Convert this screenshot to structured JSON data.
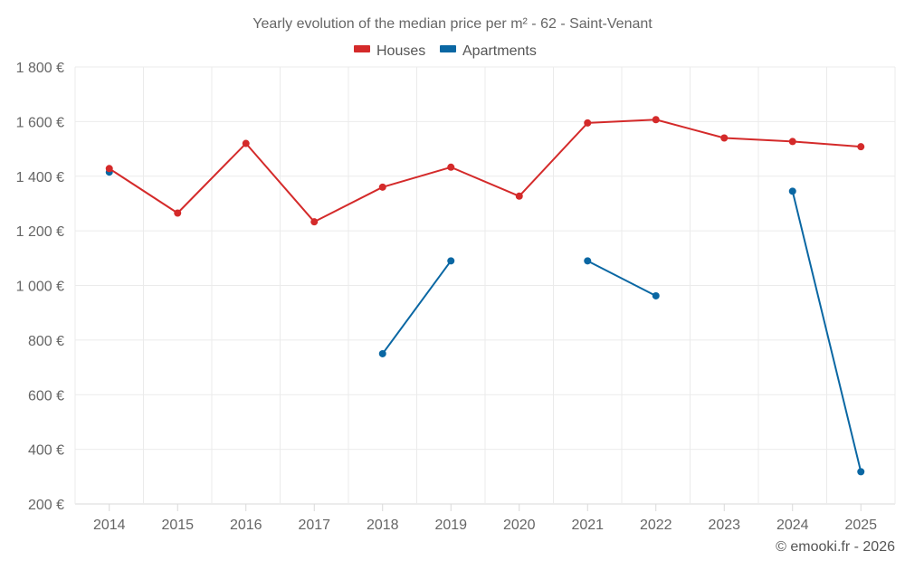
{
  "chart_data": {
    "type": "line",
    "title": "Yearly evolution of the median price per m² - 62 - Saint-Venant",
    "categories": [
      "2014",
      "2015",
      "2016",
      "2017",
      "2018",
      "2019",
      "2020",
      "2021",
      "2022",
      "2023",
      "2024",
      "2025"
    ],
    "ylim": [
      200,
      1800
    ],
    "y_ticks": [
      200,
      400,
      600,
      800,
      1000,
      1200,
      1400,
      1600,
      1800
    ],
    "y_tick_labels": [
      "200 €",
      "400 €",
      "600 €",
      "800 €",
      "1 000 €",
      "1 200 €",
      "1 400 €",
      "1 600 €",
      "1 800 €"
    ],
    "legend_position": "top-center",
    "grid": true,
    "series": [
      {
        "name": "Houses",
        "color": "#d42a2a",
        "values": [
          1428,
          1265,
          1520,
          1233,
          1360,
          1433,
          1327,
          1595,
          1607,
          1540,
          1527,
          1508
        ]
      },
      {
        "name": "Apartments",
        "color": "#0a67a3",
        "values": [
          1415,
          null,
          null,
          null,
          750,
          1090,
          null,
          1090,
          962,
          null,
          1345,
          318
        ]
      }
    ],
    "credit": "© emooki.fr - 2026"
  }
}
